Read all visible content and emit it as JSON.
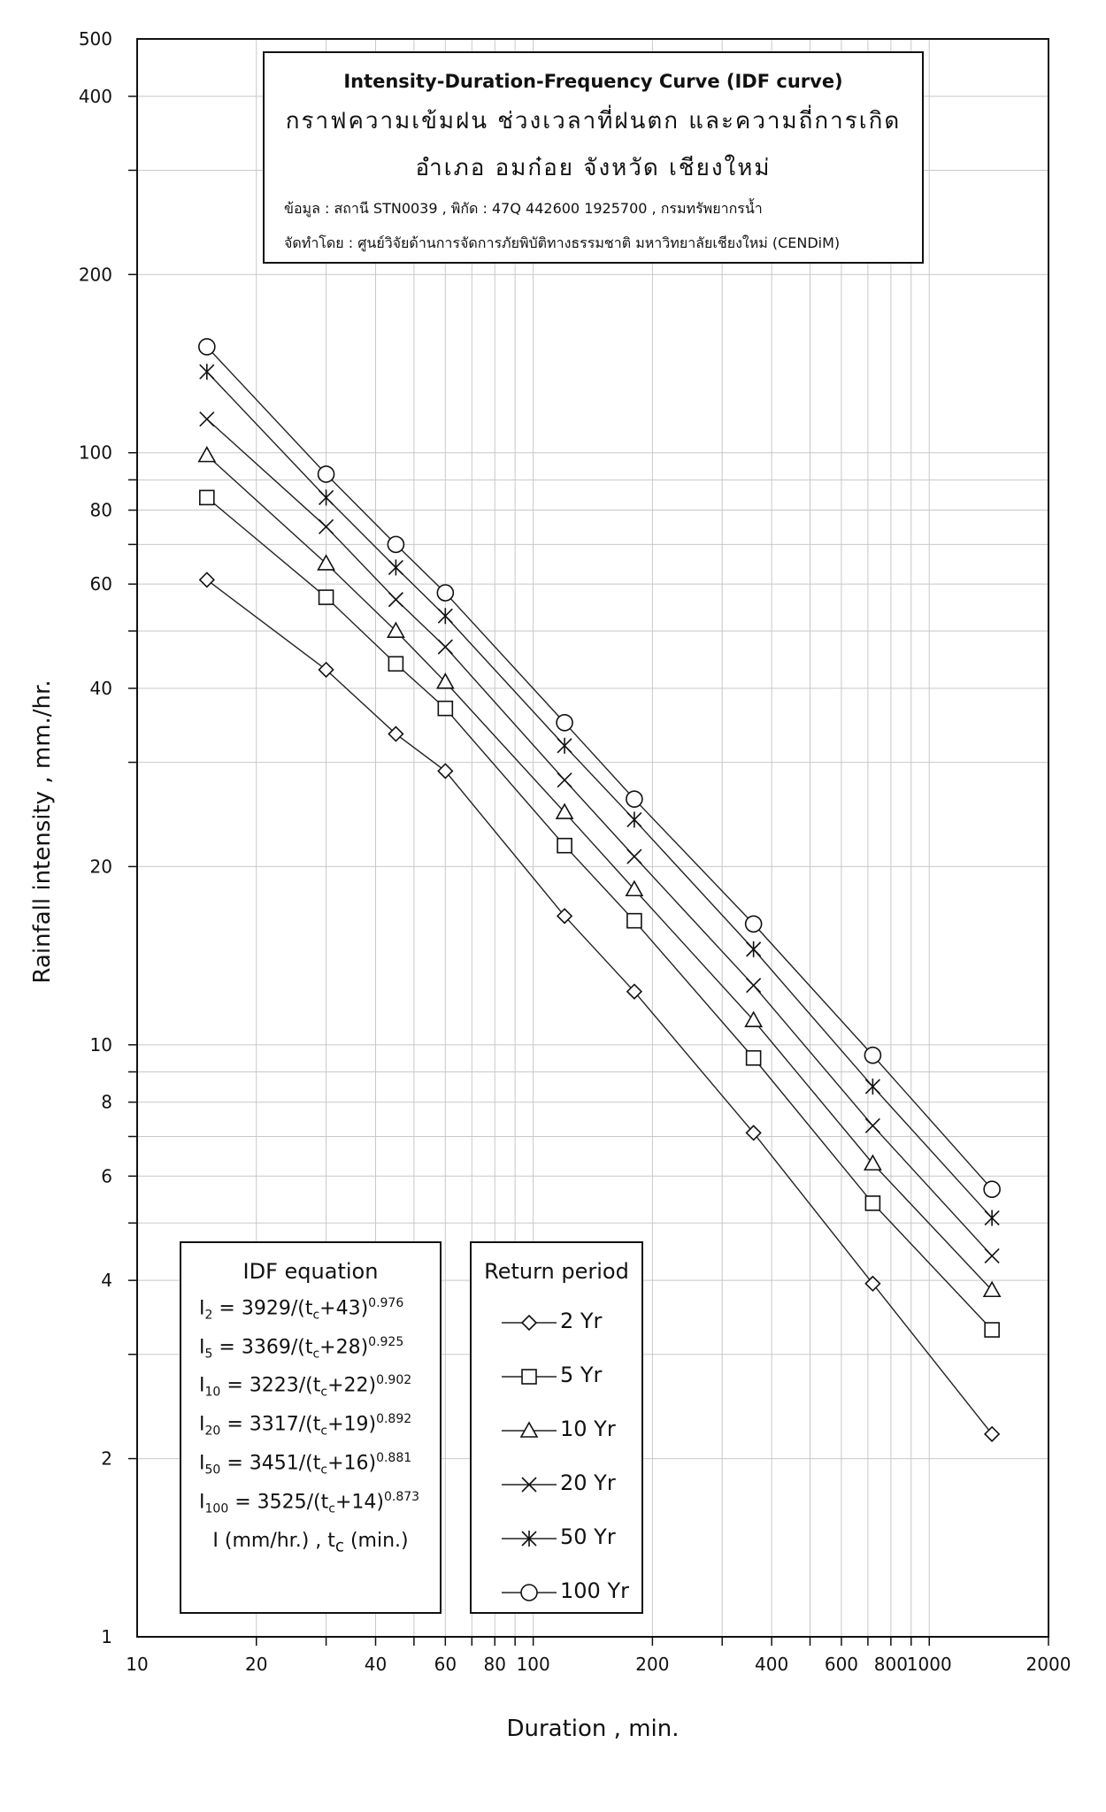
{
  "title_box": {
    "title_en": "Intensity-Duration-Frequency Curve (IDF curve)",
    "title_th_1": "กราฟความเข้มฝน ช่วงเวลาที่ฝนตก และความถี่การเกิด",
    "title_th_2": "อำเภอ อมก๋อย จังหวัด เชียงใหม่",
    "source": "ข้อมูล : สถานี STN0039 , พิกัด : 47Q 442600 1925700 , กรมทรัพยากรน้ำ",
    "prepared_by": "จัดทำโดย : ศูนย์วิจัยด้านการจัดการภัยพิบัติทางธรรมชาติ มหาวิทยาลัยเชียงใหม่ (CENDiM)"
  },
  "equations": {
    "title": "IDF equation",
    "lines": [
      {
        "sub": "2",
        "coef": "3929",
        "c": "43",
        "exp": "0.976"
      },
      {
        "sub": "5",
        "coef": "3369",
        "c": "28",
        "exp": "0.925"
      },
      {
        "sub": "10",
        "coef": "3223",
        "c": "22",
        "exp": "0.902"
      },
      {
        "sub": "20",
        "coef": "3317",
        "c": "19",
        "exp": "0.892"
      },
      {
        "sub": "50",
        "coef": "3451",
        "c": "16",
        "exp": "0.881"
      },
      {
        "sub": "100",
        "coef": "3525",
        "c": "14",
        "exp": "0.873"
      }
    ],
    "units": "I (mm/hr.) , tc (min.)"
  },
  "legend": {
    "title": "Return period",
    "items": [
      {
        "label": "2 Yr",
        "marker": "diamond"
      },
      {
        "label": "5 Yr",
        "marker": "square"
      },
      {
        "label": "10 Yr",
        "marker": "triangle"
      },
      {
        "label": "20 Yr",
        "marker": "x"
      },
      {
        "label": "50 Yr",
        "marker": "star"
      },
      {
        "label": "100 Yr",
        "marker": "circle"
      }
    ]
  },
  "chart_data": {
    "type": "line",
    "xlabel": "Duration , min.",
    "ylabel": "Rainfall intensity , mm./hr.",
    "xscale": "log",
    "yscale": "log",
    "xlim": [
      10,
      2000
    ],
    "ylim": [
      1,
      500
    ],
    "grid": true,
    "x_tick_labels": [
      "10",
      "20",
      "40",
      "60",
      "80",
      "100",
      "200",
      "400",
      "600",
      "800",
      "1000",
      "2000"
    ],
    "y_tick_labels": [
      "1",
      "2",
      "4",
      "6",
      "8",
      "10",
      "20",
      "40",
      "60",
      "80",
      "100",
      "200",
      "400",
      "500"
    ],
    "x": [
      15,
      30,
      45,
      60,
      120,
      180,
      360,
      720,
      1440
    ],
    "series": [
      {
        "name": "2 Yr",
        "marker": "diamond",
        "values": [
          61,
          43,
          33.5,
          29,
          16.5,
          12.3,
          7.1,
          3.95,
          2.2
        ]
      },
      {
        "name": "5 Yr",
        "marker": "square",
        "values": [
          84,
          57,
          44,
          37,
          21.7,
          16.2,
          9.5,
          5.4,
          3.3
        ]
      },
      {
        "name": "10 Yr",
        "marker": "triangle",
        "values": [
          99,
          65,
          50,
          41,
          24.7,
          18.3,
          11,
          6.3,
          3.85
        ]
      },
      {
        "name": "20 Yr",
        "marker": "x",
        "values": [
          114,
          75,
          56.5,
          47,
          28,
          20.8,
          12.6,
          7.3,
          4.4
        ]
      },
      {
        "name": "50 Yr",
        "marker": "star",
        "values": [
          137,
          84,
          64,
          53,
          32,
          24,
          14.5,
          8.5,
          5.1
        ]
      },
      {
        "name": "100 Yr",
        "marker": "circle",
        "values": [
          151,
          92,
          70,
          58,
          35,
          26,
          16,
          9.6,
          5.7
        ]
      }
    ]
  }
}
